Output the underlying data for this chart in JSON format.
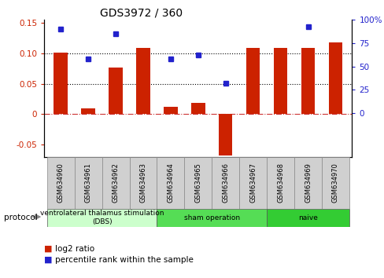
{
  "title": "GDS3972 / 360",
  "samples": [
    "GSM634960",
    "GSM634961",
    "GSM634962",
    "GSM634963",
    "GSM634964",
    "GSM634965",
    "GSM634966",
    "GSM634967",
    "GSM634968",
    "GSM634969",
    "GSM634970"
  ],
  "log2_ratio": [
    0.101,
    0.01,
    0.077,
    0.109,
    0.012,
    0.018,
    -0.068,
    0.109,
    0.108,
    0.108,
    0.118
  ],
  "percentile_rank_pct": [
    90,
    58,
    85,
    null,
    58,
    62,
    32,
    null,
    null,
    92,
    null
  ],
  "groups": [
    {
      "label": "ventrolateral thalamus stimulation\n(DBS)",
      "start": 0,
      "end": 3,
      "color": "#ccffcc"
    },
    {
      "label": "sham operation",
      "start": 4,
      "end": 7,
      "color": "#55dd55"
    },
    {
      "label": "naive",
      "start": 8,
      "end": 10,
      "color": "#33cc33"
    }
  ],
  "bar_color": "#cc2200",
  "dot_color": "#2222cc",
  "ylim_left": [
    -0.07,
    0.155
  ],
  "ylim_right": [
    -46.67,
    100
  ],
  "yticks_left": [
    -0.05,
    0.0,
    0.05,
    0.1,
    0.15
  ],
  "yticks_right": [
    0,
    25,
    50,
    75,
    100
  ],
  "ytick_left_labels": [
    "-0.05",
    "0",
    "0.05",
    "0.10",
    "0.15"
  ],
  "ytick_right_labels": [
    "0",
    "25",
    "50",
    "75",
    "100%"
  ],
  "hline_y": [
    0.05,
    0.1
  ],
  "zero_line_color": "#cc3333",
  "bar_width": 0.5,
  "sample_box_color": "#d0d0d0",
  "fig_bg": "#ffffff"
}
